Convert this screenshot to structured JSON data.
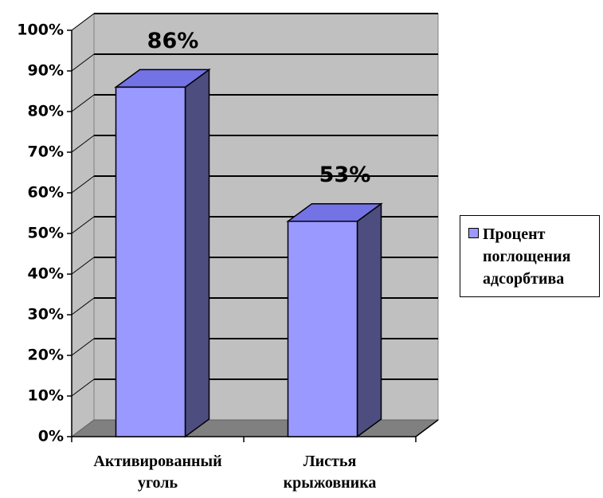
{
  "chart_data": {
    "type": "bar3d",
    "categories": [
      "Активированный уголь",
      "Листья крыжовника"
    ],
    "series": [
      {
        "name": "Процент поглощения адсорбтива",
        "color": "#9999ff",
        "values": [
          86,
          53
        ],
        "value_labels": [
          "86%",
          "53%"
        ]
      }
    ],
    "ylim": [
      0,
      100
    ],
    "yticks": [
      {
        "value": 0,
        "label": "0%"
      },
      {
        "value": 10,
        "label": "10%"
      },
      {
        "value": 20,
        "label": "20%"
      },
      {
        "value": 30,
        "label": "30%"
      },
      {
        "value": 40,
        "label": "40%"
      },
      {
        "value": 50,
        "label": "50%"
      },
      {
        "value": 60,
        "label": "60%"
      },
      {
        "value": 70,
        "label": "70%"
      },
      {
        "value": 80,
        "label": "80%"
      },
      {
        "value": 90,
        "label": "90%"
      },
      {
        "value": 100,
        "label": "100%"
      }
    ],
    "grid": true,
    "legend": "right"
  }
}
